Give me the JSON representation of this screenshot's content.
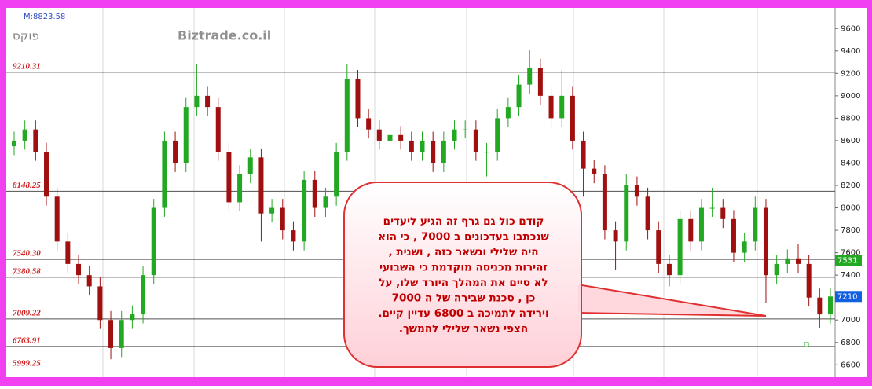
{
  "chart_data": {
    "type": "candlestick",
    "info": "M:8823.58",
    "symbol": "פוקס",
    "watermark": "Biztrade.co.il",
    "ylim": [
      6490,
      9784
    ],
    "yticks": [
      6600,
      6800,
      7000,
      7200,
      7400,
      7600,
      7800,
      8000,
      8200,
      8400,
      8600,
      8800,
      9000,
      9200,
      9400,
      9600
    ],
    "up_color": "#22a822",
    "down_color": "#a01010",
    "open": [
      8550,
      8600,
      8700,
      8500,
      8100,
      7700,
      7500,
      7400,
      7300,
      7000,
      6750,
      7000,
      7050,
      7400,
      8000,
      8600,
      8400,
      8900,
      9000,
      8900,
      8500,
      8050,
      8300,
      8450,
      7950,
      8000,
      7800,
      7700,
      8250,
      8000,
      8100,
      8500,
      9150,
      8800,
      8700,
      8600,
      8650,
      8600,
      8500,
      8600,
      8400,
      8600,
      8700,
      8700,
      8500,
      8500,
      8800,
      8900,
      9100,
      9250,
      9000,
      8800,
      9000,
      8600,
      8350,
      8300,
      7800,
      7700,
      8200,
      8100,
      7800,
      7500,
      7400,
      7900,
      7700,
      8000,
      8000,
      7900,
      7600,
      7700,
      8000,
      7400,
      7500,
      7550,
      7500,
      7200,
      7050
    ],
    "high": [
      8680,
      8780,
      8780,
      8580,
      8180,
      7780,
      7580,
      7480,
      7380,
      7080,
      7080,
      7130,
      7480,
      8080,
      8680,
      8680,
      8980,
      9280,
      9080,
      8980,
      8580,
      8380,
      8530,
      8530,
      8080,
      8080,
      7880,
      8330,
      8330,
      8180,
      8580,
      9280,
      9230,
      8880,
      8780,
      8730,
      8730,
      8680,
      8680,
      8680,
      8680,
      8780,
      8780,
      8780,
      8580,
      8880,
      8980,
      9180,
      9410,
      9330,
      9080,
      9230,
      9080,
      8680,
      8430,
      8380,
      7880,
      8300,
      8280,
      8180,
      7880,
      7580,
      7980,
      7980,
      8080,
      8180,
      8080,
      7980,
      7780,
      8100,
      8080,
      7580,
      7630,
      7680,
      7580,
      7280,
      7290
    ],
    "low": [
      8470,
      8520,
      8420,
      8020,
      7620,
      7420,
      7320,
      7220,
      6920,
      6650,
      6670,
      6920,
      6970,
      7320,
      7920,
      8320,
      8320,
      8820,
      8820,
      8420,
      7970,
      7970,
      8220,
      7700,
      7870,
      7720,
      7620,
      7620,
      7920,
      7920,
      8020,
      8420,
      8720,
      8620,
      8520,
      8520,
      8520,
      8420,
      8420,
      8320,
      8320,
      8520,
      8620,
      8420,
      8280,
      8420,
      8720,
      8820,
      9020,
      8920,
      8720,
      8720,
      8520,
      8100,
      8220,
      7720,
      7450,
      7620,
      8020,
      7720,
      7420,
      7300,
      7320,
      7620,
      7620,
      7920,
      7820,
      7520,
      7520,
      7620,
      7150,
      7320,
      7420,
      7420,
      7120,
      6930,
      6970
    ],
    "close": [
      8600,
      8700,
      8500,
      8100,
      7700,
      7500,
      7400,
      7300,
      7000,
      6750,
      7000,
      7050,
      7400,
      8000,
      8600,
      8400,
      8900,
      9000,
      8900,
      8500,
      8050,
      8300,
      8450,
      7950,
      8000,
      7800,
      7700,
      8250,
      8000,
      8100,
      8500,
      9150,
      8800,
      8700,
      8600,
      8650,
      8600,
      8500,
      8600,
      8400,
      8600,
      8700,
      8700,
      8500,
      8500,
      8800,
      8900,
      9100,
      9250,
      9000,
      8800,
      9000,
      8600,
      8350,
      8300,
      7800,
      7700,
      8200,
      8100,
      7800,
      7500,
      7400,
      7900,
      7700,
      8000,
      8000,
      7900,
      7600,
      7700,
      8000,
      7400,
      7500,
      7550,
      7500,
      7200,
      7050,
      7210
    ],
    "levels": [
      {
        "value": 9210.31,
        "label": "9210.31"
      },
      {
        "value": 8148.25,
        "label": "8148.25"
      },
      {
        "value": 7540.3,
        "label": "7540.30"
      },
      {
        "value": 7380.58,
        "label": "7380.58"
      },
      {
        "value": 7009.22,
        "label": "7009.22"
      },
      {
        "value": 6763.91,
        "label": "6763.91"
      },
      {
        "value": 5999.25,
        "label": "5999.25"
      }
    ],
    "price_tags": [
      {
        "value": 7531,
        "color": "#22a822"
      },
      {
        "value": 7210,
        "color": "#1060e0"
      }
    ],
    "annotation": [
      "קודם כול גם גרף זה הגיע ליעדים",
      "שנכתבו בעדכונים ב 7000 , כי הוא",
      "היה שלילי ונשאר כזה , ושנית ,",
      "זהירות מכניסה מוקדמת כי השבועי",
      "לא סיים את המהלך היורד שלו, על",
      "כן , סכנת שבירה של ה 7000",
      "וירידה לתמיכה ב 6800 עדיין קיים.",
      "הצפי נשאר שלילי להמשך."
    ]
  }
}
